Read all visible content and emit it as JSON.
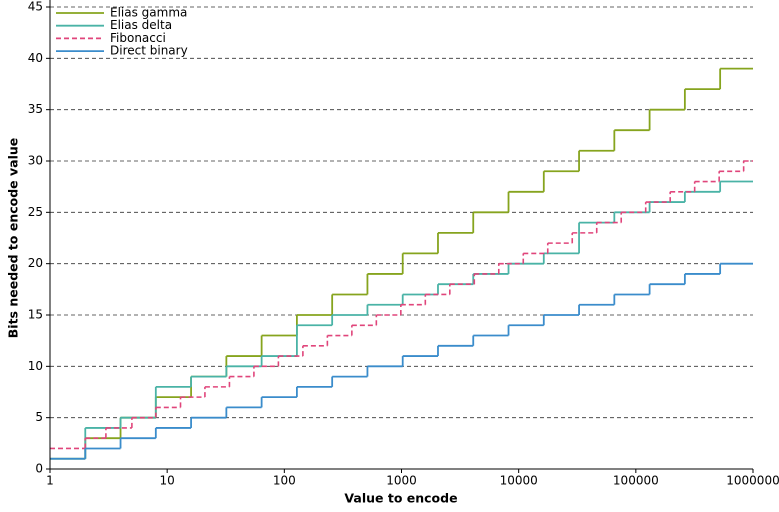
{
  "chart_data": {
    "type": "step",
    "xlabel": "Value to encode",
    "ylabel": "Bits needed to encode value",
    "xscale": "log",
    "xlim": [
      1,
      1000000
    ],
    "xticks": [
      1,
      10,
      100,
      1000,
      10000,
      100000,
      1000000
    ],
    "ylim": [
      0,
      45
    ],
    "yticks": [
      0,
      5,
      10,
      15,
      20,
      25,
      30,
      35,
      40,
      45
    ],
    "grid": true,
    "legend": "upper left",
    "series": [
      {
        "name": "Elias gamma",
        "color": "#86a41e",
        "dash": false,
        "x": [
          1,
          2,
          4,
          8,
          16,
          32,
          64,
          128,
          256,
          512,
          1024,
          2048,
          4096,
          8192,
          16384,
          32768,
          65536,
          131072,
          262144,
          524288
        ],
        "values": [
          1,
          3,
          5,
          7,
          9,
          11,
          13,
          15,
          17,
          19,
          21,
          23,
          25,
          27,
          29,
          31,
          33,
          35,
          37,
          39
        ]
      },
      {
        "name": "Elias delta",
        "color": "#4ab3a6",
        "dash": false,
        "x": [
          1,
          2,
          4,
          8,
          16,
          32,
          64,
          128,
          256,
          512,
          1024,
          2048,
          4096,
          8192,
          16384,
          32768,
          65536,
          131072,
          262144,
          524288
        ],
        "values": [
          1,
          4,
          5,
          8,
          9,
          10,
          11,
          14,
          15,
          16,
          17,
          18,
          19,
          20,
          21,
          24,
          25,
          26,
          27,
          28
        ]
      },
      {
        "name": "Fibonacci",
        "color": "#e0457b",
        "dash": true,
        "x": [
          1,
          2,
          3,
          5,
          8,
          13,
          21,
          34,
          55,
          89,
          144,
          233,
          377,
          610,
          987,
          1597,
          2584,
          4181,
          6765,
          10946,
          17711,
          28657,
          46368,
          75025,
          121393,
          196418,
          317811,
          514229,
          832040
        ],
        "values": [
          2,
          3,
          4,
          5,
          6,
          7,
          8,
          9,
          10,
          11,
          12,
          13,
          14,
          15,
          16,
          17,
          18,
          19,
          20,
          21,
          22,
          23,
          24,
          25,
          26,
          27,
          28,
          29,
          30
        ]
      },
      {
        "name": "Direct binary",
        "color": "#3a8ccb",
        "dash": false,
        "x": [
          1,
          2,
          4,
          8,
          16,
          32,
          64,
          128,
          256,
          512,
          1024,
          2048,
          4096,
          8192,
          16384,
          32768,
          65536,
          131072,
          262144,
          524288
        ],
        "values": [
          1,
          2,
          3,
          4,
          5,
          6,
          7,
          8,
          9,
          10,
          11,
          12,
          13,
          14,
          15,
          16,
          17,
          18,
          19,
          20
        ]
      }
    ]
  }
}
